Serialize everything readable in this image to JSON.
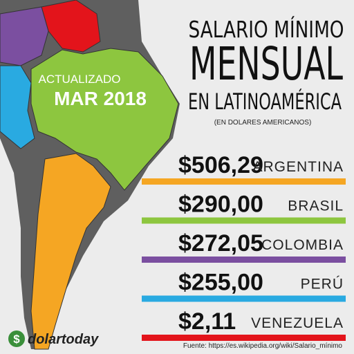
{
  "title": {
    "line1": "SALARIO MÍNIMO",
    "line2": "MENSUAL",
    "line3": "EN LATINOAMÉRICA",
    "subtitle": "(EN DOLARES AMERICANOS)"
  },
  "badge": {
    "label": "ACTUALIZADO",
    "date": "MAR 2018"
  },
  "rows": [
    {
      "amount": "$506,29",
      "country": "ARGENTINA",
      "color": "#f5a623"
    },
    {
      "amount": "$290,00",
      "country": "BRASIL",
      "color": "#8dc63f"
    },
    {
      "amount": "$272,05",
      "country": "COLOMBIA",
      "color": "#7b4fa0"
    },
    {
      "amount": "$255,00",
      "country": "PERÚ",
      "color": "#29aae1"
    },
    {
      "amount": "$2,11",
      "country": "VENEZUELA",
      "color": "#e3141b"
    }
  ],
  "logo": "dolartoday",
  "source": "Fuente: https://es.wikipedia.org/wiki/Salario_mínimo"
}
